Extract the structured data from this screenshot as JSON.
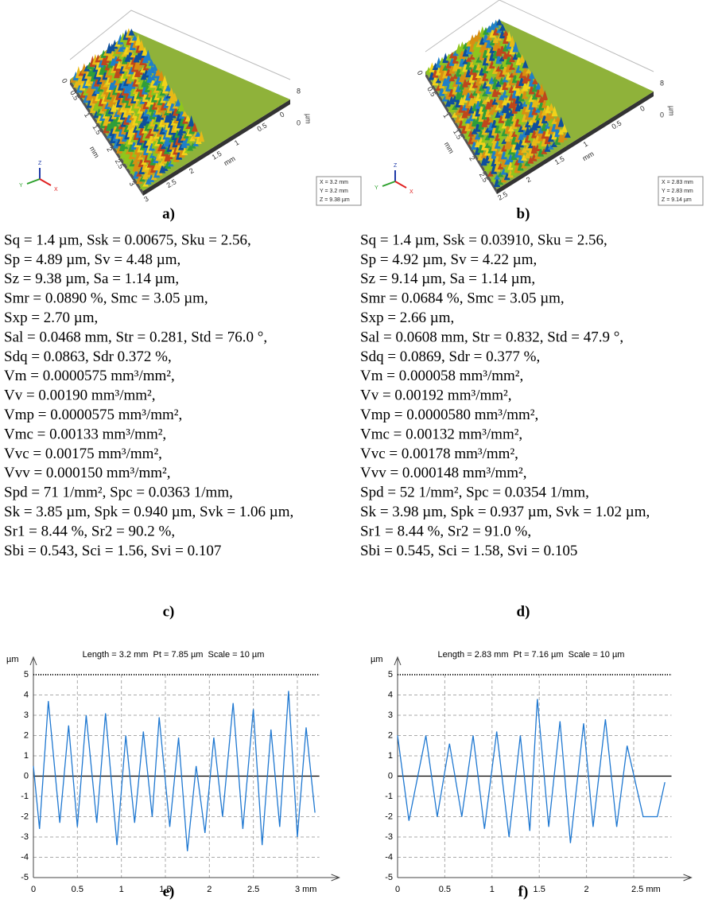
{
  "surfaces": [
    {
      "label": "a)",
      "left_ticks": [
        "0",
        "0.5",
        "1",
        "1.5",
        "2",
        "2.5",
        "3"
      ],
      "left_unit": "mm",
      "bottom_ticks": [
        "3",
        "2.5",
        "2",
        "1.5",
        "1",
        "0.5",
        "0"
      ],
      "bottom_unit": "mm",
      "z_ticks": [
        "8",
        "0"
      ],
      "z_unit": "µm",
      "axes": [
        "Z",
        "Y",
        "X"
      ],
      "info": [
        "X = 3.2 mm",
        "Y = 3.2 mm",
        "Z = 9.38 µm"
      ]
    },
    {
      "label": "b)",
      "left_ticks": [
        "0",
        "0.5",
        "1",
        "1.5",
        "2",
        "2.5"
      ],
      "left_unit": "mm",
      "bottom_ticks": [
        "2.5",
        "2",
        "1.5",
        "1",
        "0.5",
        "0"
      ],
      "bottom_unit": "mm",
      "z_ticks": [
        "8",
        "0"
      ],
      "z_unit": "µm",
      "axes": [
        "Z",
        "Y",
        "X"
      ],
      "info": [
        "X = 2.83 mm",
        "Y = 2.83 mm",
        "Z = 9.14 µm"
      ]
    }
  ],
  "parameters": [
    {
      "label": "c)",
      "lines": [
        "Sq = 1.4 µm, Ssk = 0.00675, Sku = 2.56,",
        "Sp = 4.89 µm, Sv = 4.48 µm,",
        "Sz = 9.38 µm, Sa = 1.14 µm,",
        "Smr = 0.0890 %, Smc = 3.05 µm,",
        "Sxp = 2.70 µm,",
        "Sal = 0.0468 mm, Str = 0.281, Std = 76.0 °,",
        "Sdq = 0.0863, Sdr 0.372 %,",
        "Vm = 0.0000575 mm³/mm²,",
        "Vv = 0.00190 mm³/mm²,",
        "Vmp = 0.0000575 mm³/mm²,",
        "Vmc = 0.00133 mm³/mm²,",
        "Vvc = 0.00175 mm³/mm²,",
        "Vvv = 0.000150 mm³/mm²,",
        "Spd = 71 1/mm², Spc = 0.0363 1/mm,",
        "Sk = 3.85 µm, Spk = 0.940 µm, Svk = 1.06 µm,",
        "Sr1 = 8.44 %, Sr2 = 90.2 %,",
        "Sbi = 0.543, Sci = 1.56, Svi = 0.107"
      ]
    },
    {
      "label": "d)",
      "lines": [
        "Sq = 1.4 µm, Ssk = 0.03910, Sku = 2.56,",
        "Sp = 4.92 µm, Sv = 4.22 µm,",
        "Sz = 9.14 µm, Sa = 1.14 µm,",
        "Smr = 0.0684 %, Smc = 3.05 µm,",
        "Sxp = 2.66 µm,",
        "Sal = 0.0608 mm, Str = 0.832, Std = 47.9 °,",
        "Sdq = 0.0869, Sdr = 0.377 %,",
        "Vm = 0.000058 mm³/mm²,",
        "Vv = 0.00192 mm³/mm²,",
        "Vmp = 0.0000580 mm³/mm²,",
        "Vmc = 0.00132 mm³/mm²,",
        "Vvc = 0.00178 mm³/mm²,",
        "Vvv = 0.000148 mm³/mm²,",
        "Spd = 52 1/mm², Spc = 0.0354 1/mm,",
        "Sk = 3.98 µm, Spk = 0.937 µm, Svk = 1.02 µm,",
        "Sr1 = 8.44 %, Sr2 = 91.0 %,",
        "Sbi = 0.545, Sci = 1.58, Svi = 0.105"
      ]
    }
  ],
  "profiles": [
    {
      "type": "line",
      "label": "e)",
      "title": "Length = 3.2 mm  Pt = 7.85 µm  Scale = 10 µm",
      "y_label": "µm",
      "color": "#1f78d1",
      "x": [
        0,
        0.07,
        0.17,
        0.3,
        0.4,
        0.5,
        0.6,
        0.72,
        0.82,
        0.95,
        1.05,
        1.15,
        1.25,
        1.35,
        1.43,
        1.55,
        1.65,
        1.75,
        1.85,
        1.95,
        2.05,
        2.15,
        2.27,
        2.38,
        2.5,
        2.6,
        2.7,
        2.8,
        2.9,
        3.0,
        3.1,
        3.2
      ],
      "values": [
        0.5,
        -2.6,
        3.7,
        -2.3,
        2.5,
        -2.5,
        3.0,
        -2.3,
        3.1,
        -3.4,
        2.0,
        -2.3,
        2.2,
        -2.0,
        2.9,
        -2.5,
        1.9,
        -3.7,
        0.5,
        -2.8,
        1.9,
        -2.0,
        3.6,
        -2.6,
        3.3,
        -3.4,
        2.3,
        -2.5,
        4.2,
        -3.0,
        2.4,
        -1.8
      ],
      "xlim": [
        0,
        3.25
      ],
      "xticks": [
        0,
        0.5,
        1,
        1.5,
        2,
        2.5,
        {
          "value": 3,
          "label": "3 mm"
        }
      ],
      "ylim": [
        -5,
        5
      ],
      "yticks": [
        5,
        4,
        3,
        2,
        1,
        0,
        -1,
        -2,
        -3,
        -4,
        -5
      ],
      "grid": true
    },
    {
      "type": "line",
      "label": "f)",
      "title": "Length = 2.83 mm  Pt = 7.16 µm  Scale = 10 µm",
      "y_label": "µm",
      "color": "#1f78d1",
      "x": [
        0,
        0.12,
        0.3,
        0.42,
        0.55,
        0.68,
        0.8,
        0.92,
        1.05,
        1.18,
        1.3,
        1.4,
        1.48,
        1.6,
        1.72,
        1.83,
        1.97,
        2.07,
        2.2,
        2.32,
        2.43,
        2.6,
        2.75,
        2.83
      ],
      "values": [
        2.0,
        -2.2,
        2.0,
        -2.0,
        1.6,
        -2.0,
        2.0,
        -2.6,
        2.2,
        -3.0,
        2.0,
        -2.7,
        3.8,
        -2.5,
        2.7,
        -3.3,
        2.6,
        -2.5,
        2.8,
        -2.5,
        1.5,
        -2.0,
        -2.0,
        -0.3
      ],
      "xlim": [
        0,
        2.9
      ],
      "xticks": [
        0,
        0.5,
        1,
        1.5,
        2,
        {
          "value": 2.5,
          "label": "2.5 mm"
        }
      ],
      "ylim": [
        -5,
        5
      ],
      "yticks": [
        5,
        4,
        3,
        2,
        1,
        0,
        -1,
        -2,
        -3,
        -4,
        -5
      ],
      "grid": true
    }
  ]
}
